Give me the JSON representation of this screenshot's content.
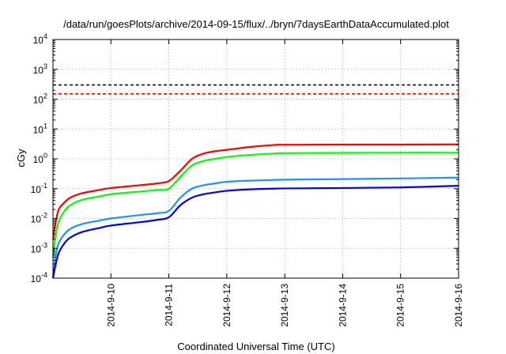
{
  "chart_data": {
    "type": "line",
    "title": "/data/run/goesPlots/archive/2014-09-15/flux/../bryn/7daysEarthDataAccumulated.plot",
    "xlabel": "Coordinated Universal Time (UTC)",
    "ylabel": "cGy",
    "x_ticks": [
      "2014-9-10",
      "2014-9-11",
      "2014-9-12",
      "2014-9-13",
      "2014-9-14",
      "2014-9-15",
      "2014-9-16"
    ],
    "xlim": [
      "2014-09-09",
      "2014-09-16"
    ],
    "yscale": "log",
    "ylim": [
      0.0001,
      10000
    ],
    "y_ticks": [
      {
        "base": "10",
        "exp": "-4"
      },
      {
        "base": "10",
        "exp": "-3"
      },
      {
        "base": "10",
        "exp": "-2"
      },
      {
        "base": "10",
        "exp": "-1"
      },
      {
        "base": "10",
        "exp": "0"
      },
      {
        "base": "10",
        "exp": "1"
      },
      {
        "base": "10",
        "exp": "2"
      },
      {
        "base": "10",
        "exp": "3"
      },
      {
        "base": "10",
        "exp": "4"
      }
    ],
    "grid": true,
    "reference_lines": [
      {
        "y": 300,
        "color": "#000000",
        "style": "dashed"
      },
      {
        "y": 150,
        "color": "#ff0000",
        "style": "dashed"
      }
    ],
    "series": [
      {
        "color": "#ff0000",
        "x": [
          "2014-09-09 00:00",
          "2014-09-09 01:12",
          "2014-09-09 02:24",
          "2014-09-09 04:48",
          "2014-09-09 07:12",
          "2014-09-09 12:00",
          "2014-09-09 19:12",
          "2014-09-10 00:00",
          "2014-09-10 12:00",
          "2014-09-10 19:12",
          "2014-09-11 00:00",
          "2014-09-11 04:48",
          "2014-09-11 09:36",
          "2014-09-11 14:24",
          "2014-09-11 19:12",
          "2014-09-12 00:00",
          "2014-09-12 09:36",
          "2014-09-12 19:12",
          "2014-09-13 00:00",
          "2014-09-14 00:00",
          "2014-09-15 00:00",
          "2014-09-16 00:00"
        ],
        "values": [
          0.002,
          0.008,
          0.02,
          0.035,
          0.05,
          0.07,
          0.09,
          0.105,
          0.13,
          0.15,
          0.18,
          0.4,
          1.0,
          1.5,
          1.8,
          2.0,
          2.5,
          2.9,
          2.95,
          3.0,
          3.0,
          3.05
        ]
      },
      {
        "color": "#00ff00",
        "x": [
          "2014-09-09 00:00",
          "2014-09-09 01:12",
          "2014-09-09 02:24",
          "2014-09-09 04:48",
          "2014-09-09 07:12",
          "2014-09-09 12:00",
          "2014-09-09 19:12",
          "2014-09-10 00:00",
          "2014-09-10 12:00",
          "2014-09-10 19:12",
          "2014-09-11 00:00",
          "2014-09-11 04:48",
          "2014-09-11 09:36",
          "2014-09-11 14:24",
          "2014-09-11 19:12",
          "2014-09-12 00:00",
          "2014-09-12 09:36",
          "2014-09-12 19:12",
          "2014-09-13 00:00",
          "2014-09-14 00:00",
          "2014-09-15 00:00",
          "2014-09-16 00:00"
        ],
        "values": [
          0.0005,
          0.003,
          0.008,
          0.018,
          0.028,
          0.042,
          0.055,
          0.065,
          0.08,
          0.09,
          0.1,
          0.25,
          0.6,
          0.85,
          1.0,
          1.15,
          1.35,
          1.5,
          1.55,
          1.58,
          1.6,
          1.6
        ]
      },
      {
        "color": "#1e90ff",
        "x": [
          "2014-09-09 00:00",
          "2014-09-09 01:12",
          "2014-09-09 02:24",
          "2014-09-09 04:48",
          "2014-09-09 07:12",
          "2014-09-09 12:00",
          "2014-09-09 19:12",
          "2014-09-10 00:00",
          "2014-09-10 12:00",
          "2014-09-10 19:12",
          "2014-09-11 00:00",
          "2014-09-11 04:48",
          "2014-09-11 09:36",
          "2014-09-11 14:24",
          "2014-09-11 19:12",
          "2014-09-12 00:00",
          "2014-09-12 09:36",
          "2014-09-12 19:12",
          "2014-09-13 00:00",
          "2014-09-14 00:00",
          "2014-09-15 00:00",
          "2014-09-16 00:00"
        ],
        "values": [
          0.0001,
          0.0006,
          0.0015,
          0.003,
          0.0045,
          0.0065,
          0.0085,
          0.01,
          0.013,
          0.015,
          0.018,
          0.05,
          0.1,
          0.13,
          0.15,
          0.17,
          0.185,
          0.195,
          0.2,
          0.21,
          0.22,
          0.235
        ]
      },
      {
        "color": "#0000ff",
        "x": [
          "2014-09-09 00:00",
          "2014-09-09 01:12",
          "2014-09-09 02:24",
          "2014-09-09 04:48",
          "2014-09-09 07:12",
          "2014-09-09 12:00",
          "2014-09-09 19:12",
          "2014-09-10 00:00",
          "2014-09-10 12:00",
          "2014-09-10 19:12",
          "2014-09-11 00:00",
          "2014-09-11 04:48",
          "2014-09-11 09:36",
          "2014-09-11 14:24",
          "2014-09-11 19:12",
          "2014-09-12 00:00",
          "2014-09-12 09:36",
          "2014-09-12 19:12",
          "2014-09-13 00:00",
          "2014-09-14 00:00",
          "2014-09-15 00:00",
          "2014-09-16 00:00"
        ],
        "values": [
          0.0001,
          0.0003,
          0.0007,
          0.0015,
          0.0023,
          0.0035,
          0.0048,
          0.0058,
          0.0075,
          0.009,
          0.011,
          0.028,
          0.05,
          0.065,
          0.075,
          0.085,
          0.095,
          0.1,
          0.102,
          0.105,
          0.11,
          0.125
        ]
      }
    ]
  }
}
